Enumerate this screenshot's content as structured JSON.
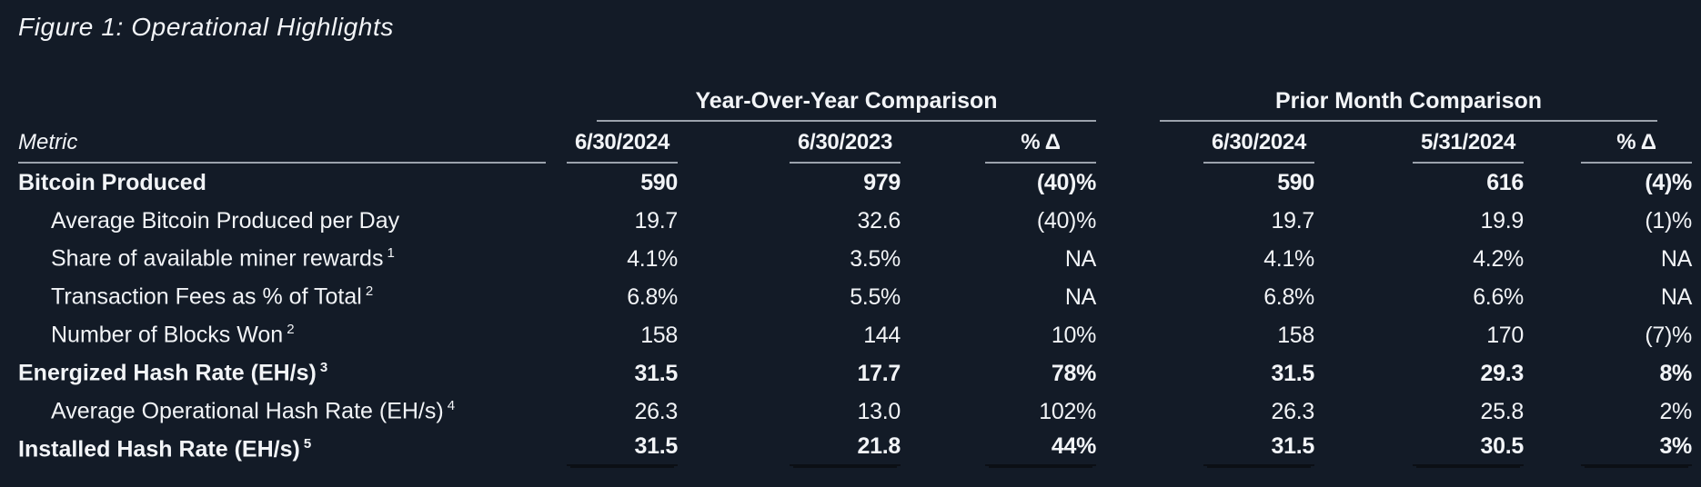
{
  "figure": {
    "title": "Figure 1: Operational Highlights"
  },
  "table": {
    "metric_header": "Metric",
    "groups": [
      {
        "label": "Year-Over-Year Comparison",
        "columns": [
          "6/30/2024",
          "6/30/2023",
          "% Δ"
        ]
      },
      {
        "label": "Prior Month Comparison",
        "columns": [
          "6/30/2024",
          "5/31/2024",
          "% Δ"
        ]
      }
    ],
    "rows": [
      {
        "label": "Bitcoin Produced",
        "sup": "",
        "bold": true,
        "indent": false,
        "yoy": [
          "590",
          "979",
          "(40)%"
        ],
        "pm": [
          "590",
          "616",
          "(4)%"
        ]
      },
      {
        "label": "Average Bitcoin Produced per Day",
        "sup": "",
        "bold": false,
        "indent": true,
        "yoy": [
          "19.7",
          "32.6",
          "(40)%"
        ],
        "pm": [
          "19.7",
          "19.9",
          "(1)%"
        ]
      },
      {
        "label": "Share of available miner rewards",
        "sup": "1",
        "bold": false,
        "indent": true,
        "yoy": [
          "4.1%",
          "3.5%",
          "NA"
        ],
        "pm": [
          "4.1%",
          "4.2%",
          "NA"
        ]
      },
      {
        "label": "Transaction Fees as % of Total",
        "sup": "2",
        "bold": false,
        "indent": true,
        "yoy": [
          "6.8%",
          "5.5%",
          "NA"
        ],
        "pm": [
          "6.8%",
          "6.6%",
          "NA"
        ]
      },
      {
        "label": "Number of Blocks Won",
        "sup": "2",
        "bold": false,
        "indent": true,
        "yoy": [
          "158",
          "144",
          "10%"
        ],
        "pm": [
          "158",
          "170",
          "(7)%"
        ]
      },
      {
        "label": "Energized Hash Rate (EH/s)",
        "sup": "3",
        "bold": true,
        "indent": false,
        "yoy": [
          "31.5",
          "17.7",
          "78%"
        ],
        "pm": [
          "31.5",
          "29.3",
          "8%"
        ]
      },
      {
        "label": "Average Operational Hash Rate (EH/s)",
        "sup": "4",
        "bold": false,
        "indent": true,
        "yoy": [
          "26.3",
          "13.0",
          "102%"
        ],
        "pm": [
          "26.3",
          "25.8",
          "2%"
        ]
      },
      {
        "label": "Installed Hash Rate (EH/s)",
        "sup": "5",
        "bold": true,
        "indent": false,
        "yoy": [
          "31.5",
          "21.8",
          "44%"
        ],
        "pm": [
          "31.5",
          "30.5",
          "3%"
        ]
      }
    ]
  },
  "colors": {
    "background": "#131B27",
    "text": "#F2F4F7",
    "rule_light": "#9BA2AC",
    "rule_dark": "#0B0F15"
  }
}
